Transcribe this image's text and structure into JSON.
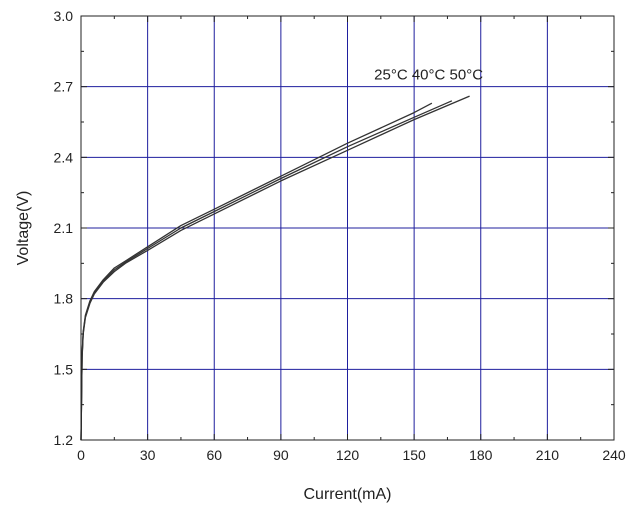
{
  "chart_data": {
    "type": "line",
    "title": "",
    "xlabel": "Current(mA)",
    "ylabel": "Voltage(V)",
    "xlim": [
      0,
      240
    ],
    "ylim": [
      1.2,
      3.0
    ],
    "xticks": [
      0,
      30,
      60,
      90,
      120,
      150,
      180,
      210,
      240
    ],
    "xtick_labels": [
      "0",
      "30",
      "60",
      "90",
      "120",
      "150",
      "180",
      "210",
      "240"
    ],
    "yticks": [
      1.2,
      1.5,
      1.8,
      2.1,
      2.4,
      2.7,
      3.0
    ],
    "ytick_labels": [
      "1.2",
      "1.5",
      "1.8",
      "2.1",
      "2.4",
      "2.7",
      "3.0"
    ],
    "grid": true,
    "grid_color": "#1f1f9e",
    "series_color": "#333333",
    "annotation": "25°C 40°C 50°C",
    "series": [
      {
        "x": [
          0,
          0.5,
          1,
          2,
          4,
          6,
          10,
          15,
          20,
          30,
          45,
          60,
          90,
          120,
          150,
          158
        ],
        "y": [
          1.2,
          1.56,
          1.66,
          1.73,
          1.79,
          1.83,
          1.88,
          1.93,
          1.96,
          2.02,
          2.11,
          2.18,
          2.32,
          2.46,
          2.59,
          2.63
        ]
      },
      {
        "x": [
          0,
          0.5,
          1,
          2,
          4,
          6,
          10,
          15,
          20,
          30,
          45,
          60,
          90,
          120,
          150,
          167
        ],
        "y": [
          1.2,
          1.555,
          1.655,
          1.725,
          1.785,
          1.825,
          1.875,
          1.922,
          1.955,
          2.013,
          2.1,
          2.17,
          2.31,
          2.445,
          2.57,
          2.64
        ]
      },
      {
        "x": [
          0,
          0.5,
          1,
          2,
          4,
          6,
          10,
          15,
          20,
          30,
          45,
          60,
          90,
          120,
          150,
          175
        ],
        "y": [
          1.2,
          1.55,
          1.65,
          1.72,
          1.78,
          1.82,
          1.87,
          1.915,
          1.95,
          2.005,
          2.09,
          2.16,
          2.3,
          2.43,
          2.56,
          2.66
        ]
      }
    ]
  }
}
